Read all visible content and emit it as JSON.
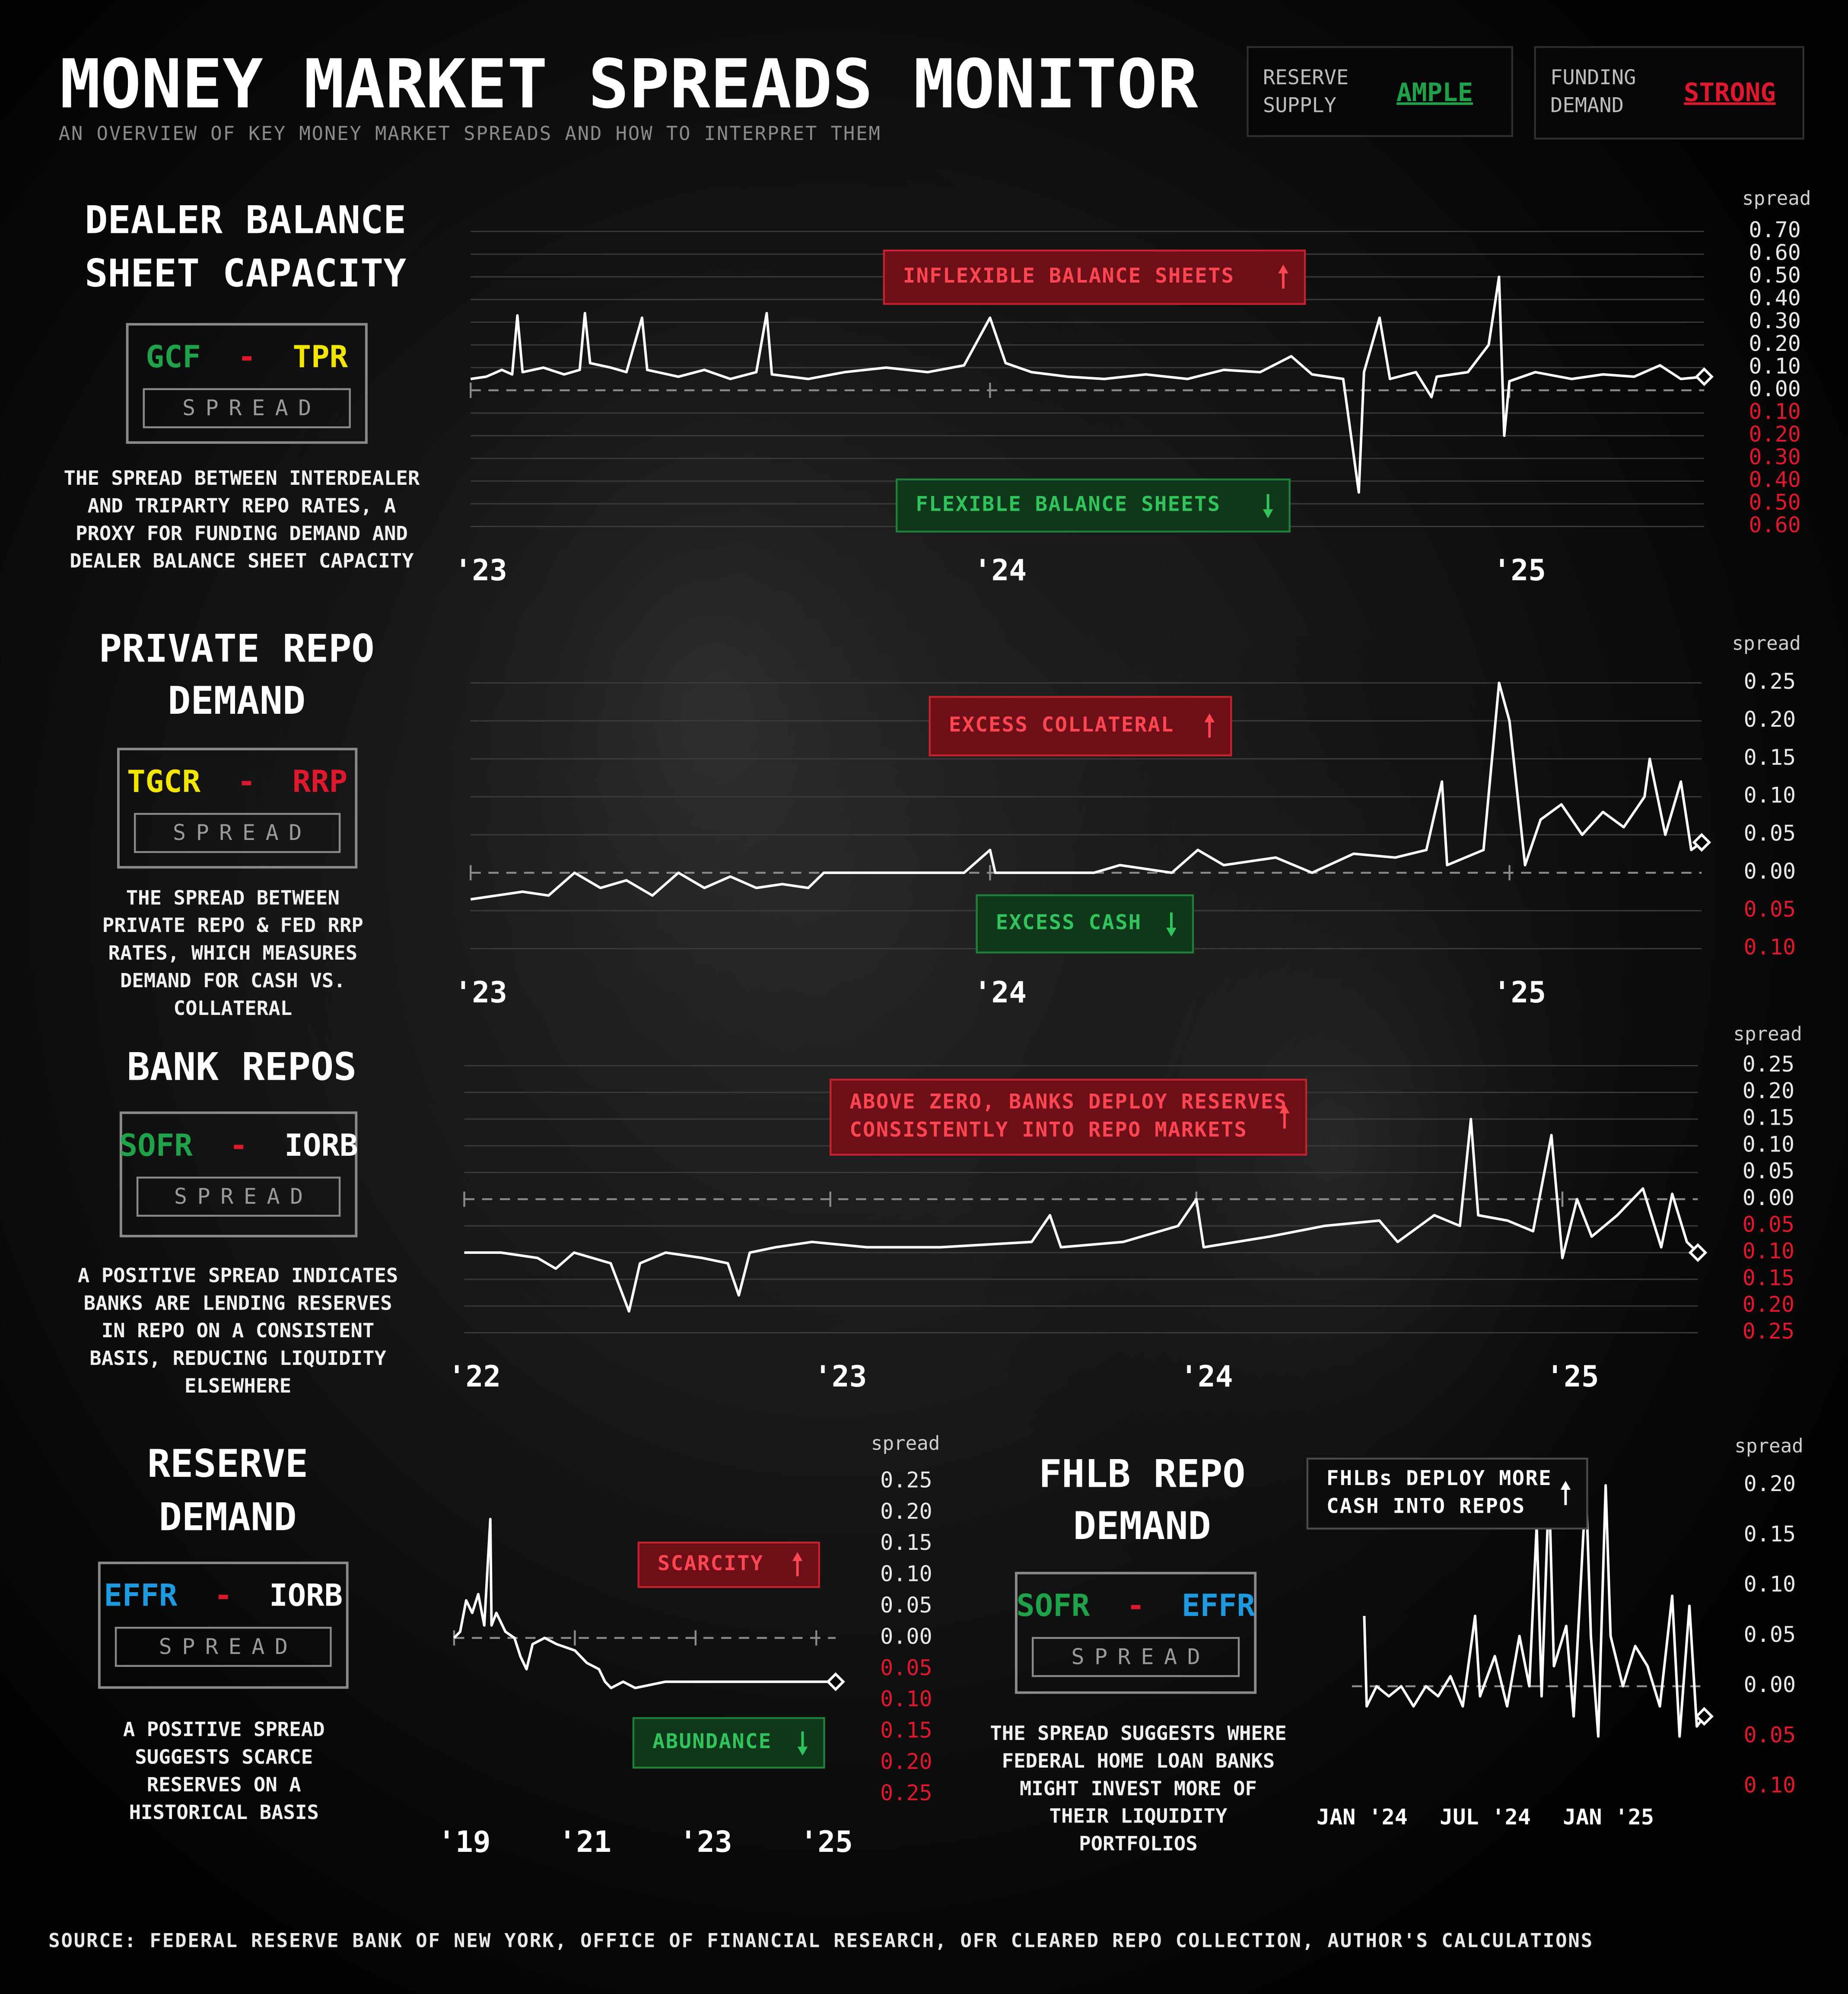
{
  "header": {
    "title": "MONEY MARKET SPREADS MONITOR",
    "subtitle": "AN OVERVIEW OF KEY MONEY MARKET SPREADS AND HOW TO INTERPRET THEM"
  },
  "indicators": [
    {
      "label": [
        "RESERVE",
        "SUPPLY"
      ],
      "value": "AMPLE",
      "color": "#1fa34a"
    },
    {
      "label": [
        "FUNDING",
        "DEMAND"
      ],
      "value": "STRONG",
      "color": "#e0182d"
    }
  ],
  "chart_data": [
    {
      "type": "line",
      "title": [
        "DEALER BALANCE",
        "SHEET CAPACITY"
      ],
      "legs": [
        {
          "text": "GCF",
          "color": "#1fa34a"
        },
        {
          "text": "-",
          "color": "#e0182d"
        },
        {
          "text": "TPR",
          "color": "#f2e600"
        }
      ],
      "spread_word": "SPREAD",
      "description": [
        "THE SPREAD BETWEEN INTERDEALER",
        "AND TRIPARTY REPO RATES, A",
        "PROXY FOR FUNDING DEMAND AND",
        "DEALER BALANCE SHEET CAPACITY"
      ],
      "y_label": "spread",
      "grid": true,
      "negative_tick_color": "#e0182d",
      "ylim": [
        -0.6,
        0.7
      ],
      "yticks": [
        {
          "value": 0.7,
          "label": "0.70"
        },
        {
          "value": 0.6,
          "label": "0.60"
        },
        {
          "value": 0.5,
          "label": "0.50"
        },
        {
          "value": 0.4,
          "label": "0.40"
        },
        {
          "value": 0.3,
          "label": "0.30"
        },
        {
          "value": 0.2,
          "label": "0.20"
        },
        {
          "value": 0.1,
          "label": "0.10"
        },
        {
          "value": 0,
          "label": "0.00"
        },
        {
          "value": -0.1,
          "label": "0.10"
        },
        {
          "value": -0.2,
          "label": "0.20"
        },
        {
          "value": -0.3,
          "label": "0.30"
        },
        {
          "value": -0.4,
          "label": "0.40"
        },
        {
          "value": -0.5,
          "label": "0.50"
        },
        {
          "value": -0.6,
          "label": "0.60"
        }
      ],
      "xlim": [
        2023,
        2025.375
      ],
      "xticks": [
        {
          "value": 2023,
          "label": "'23"
        },
        {
          "value": 2024,
          "label": "'24"
        },
        {
          "value": 2025,
          "label": "'25"
        }
      ],
      "series": [
        {
          "color": "#ffffff",
          "x": [
            2023.0,
            2023.03,
            2023.06,
            2023.08,
            2023.09,
            2023.1,
            2023.14,
            2023.18,
            2023.21,
            2023.22,
            2023.23,
            2023.27,
            2023.3,
            2023.33,
            2023.34,
            2023.4,
            2023.45,
            2023.5,
            2023.55,
            2023.57,
            2023.58,
            2023.65,
            2023.72,
            2023.8,
            2023.88,
            2023.95,
            2024.0,
            2024.03,
            2024.08,
            2024.15,
            2024.22,
            2024.3,
            2024.38,
            2024.45,
            2024.52,
            2024.58,
            2024.62,
            2024.68,
            2024.71,
            2024.72,
            2024.75,
            2024.77,
            2024.82,
            2024.85,
            2024.86,
            2024.92,
            2024.96,
            2024.98,
            2024.99,
            2025.0,
            2025.05,
            2025.12,
            2025.18,
            2025.24,
            2025.29,
            2025.33,
            2025.375
          ],
          "values": [
            0.05,
            0.06,
            0.09,
            0.07,
            0.33,
            0.08,
            0.1,
            0.07,
            0.09,
            0.34,
            0.12,
            0.1,
            0.08,
            0.32,
            0.09,
            0.06,
            0.09,
            0.05,
            0.08,
            0.34,
            0.07,
            0.05,
            0.08,
            0.1,
            0.08,
            0.11,
            0.32,
            0.12,
            0.08,
            0.06,
            0.05,
            0.07,
            0.05,
            0.09,
            0.08,
            0.15,
            0.07,
            0.05,
            -0.45,
            0.08,
            0.32,
            0.05,
            0.08,
            -0.03,
            0.06,
            0.08,
            0.2,
            0.5,
            -0.2,
            0.04,
            0.08,
            0.05,
            0.07,
            0.06,
            0.11,
            0.05,
            0.06
          ]
        }
      ],
      "annotations": [
        {
          "lines": [
            "INFLEXIBLE BALANCE SHEETS"
          ],
          "style": "red",
          "arrow": "up"
        },
        {
          "lines": [
            "FLEXIBLE BALANCE SHEETS"
          ],
          "style": "green",
          "arrow": "down"
        }
      ]
    },
    {
      "type": "line",
      "title": [
        "PRIVATE REPO",
        "DEMAND"
      ],
      "legs": [
        {
          "text": "TGCR",
          "color": "#f2e600"
        },
        {
          "text": "-",
          "color": "#e0182d"
        },
        {
          "text": "RRP",
          "color": "#e0182d"
        }
      ],
      "spread_word": "SPREAD",
      "description": [
        "THE SPREAD BETWEEN",
        "PRIVATE REPO & FED RRP",
        "RATES, WHICH MEASURES",
        "DEMAND FOR CASH VS.",
        "COLLATERAL"
      ],
      "y_label": "spread",
      "grid": true,
      "negative_tick_color": "#e0182d",
      "ylim": [
        -0.1,
        0.25
      ],
      "yticks": [
        {
          "value": 0.25,
          "label": "0.25"
        },
        {
          "value": 0.2,
          "label": "0.20"
        },
        {
          "value": 0.15,
          "label": "0.15"
        },
        {
          "value": 0.1,
          "label": "0.10"
        },
        {
          "value": 0.05,
          "label": "0.05"
        },
        {
          "value": 0,
          "label": "0.00"
        },
        {
          "value": -0.05,
          "label": "0.05"
        },
        {
          "value": -0.1,
          "label": "0.10"
        }
      ],
      "xlim": [
        2023,
        2025.37
      ],
      "xticks": [
        {
          "value": 2023,
          "label": "'23"
        },
        {
          "value": 2024,
          "label": "'24"
        },
        {
          "value": 2025,
          "label": "'25"
        }
      ],
      "series": [
        {
          "color": "#ffffff",
          "x": [
            2023.0,
            2023.05,
            2023.1,
            2023.15,
            2023.2,
            2023.25,
            2023.3,
            2023.35,
            2023.4,
            2023.45,
            2023.5,
            2023.55,
            2023.6,
            2023.65,
            2023.68,
            2023.8,
            2023.95,
            2024.0,
            2024.01,
            2024.2,
            2024.25,
            2024.35,
            2024.4,
            2024.45,
            2024.55,
            2024.62,
            2024.7,
            2024.78,
            2024.84,
            2024.87,
            2024.88,
            2024.95,
            2024.98,
            2025.0,
            2025.03,
            2025.06,
            2025.1,
            2025.14,
            2025.18,
            2025.22,
            2025.26,
            2025.27,
            2025.3,
            2025.33,
            2025.35,
            2025.37
          ],
          "values": [
            -0.035,
            -0.03,
            -0.025,
            -0.03,
            0.0,
            -0.02,
            -0.01,
            -0.03,
            0.0,
            -0.02,
            -0.005,
            -0.02,
            -0.015,
            -0.02,
            0.0,
            0.0,
            0.0,
            0.03,
            0.0,
            0.0,
            0.01,
            0.0,
            0.03,
            0.01,
            0.02,
            0.0,
            0.025,
            0.02,
            0.03,
            0.12,
            0.01,
            0.03,
            0.25,
            0.2,
            0.01,
            0.07,
            0.09,
            0.05,
            0.08,
            0.06,
            0.1,
            0.15,
            0.05,
            0.12,
            0.03,
            0.04
          ]
        }
      ],
      "annotations": [
        {
          "lines": [
            "EXCESS COLLATERAL"
          ],
          "style": "red",
          "arrow": "up"
        },
        {
          "lines": [
            "EXCESS CASH"
          ],
          "style": "green",
          "arrow": "down"
        }
      ]
    },
    {
      "type": "line",
      "title": [
        "BANK REPOS"
      ],
      "legs": [
        {
          "text": "SOFR",
          "color": "#1fa34a"
        },
        {
          "text": "-",
          "color": "#e0182d"
        },
        {
          "text": "IORB",
          "color": "#ffffff"
        }
      ],
      "spread_word": "SPREAD",
      "description": [
        "A POSITIVE SPREAD INDICATES",
        "BANKS ARE LENDING RESERVES",
        "IN REPO ON A CONSISTENT",
        "BASIS, REDUCING LIQUIDITY",
        "ELSEWHERE"
      ],
      "y_label": "spread",
      "grid": true,
      "negative_tick_color": "#e0182d",
      "ylim": [
        -0.25,
        0.25
      ],
      "yticks": [
        {
          "value": 0.25,
          "label": "0.25"
        },
        {
          "value": 0.2,
          "label": "0.20"
        },
        {
          "value": 0.15,
          "label": "0.15"
        },
        {
          "value": 0.1,
          "label": "0.10"
        },
        {
          "value": 0.05,
          "label": "0.05"
        },
        {
          "value": 0,
          "label": "0.00"
        },
        {
          "value": -0.05,
          "label": "0.05"
        },
        {
          "value": -0.1,
          "label": "0.10"
        },
        {
          "value": -0.15,
          "label": "0.15"
        },
        {
          "value": -0.2,
          "label": "0.20"
        },
        {
          "value": -0.25,
          "label": "0.25"
        }
      ],
      "xlim": [
        2022,
        2025.37
      ],
      "xticks": [
        {
          "value": 2022,
          "label": "'22"
        },
        {
          "value": 2023,
          "label": "'23"
        },
        {
          "value": 2024,
          "label": "'24"
        },
        {
          "value": 2025,
          "label": "'25"
        }
      ],
      "series": [
        {
          "color": "#ffffff",
          "x": [
            2022.0,
            2022.1,
            2022.2,
            2022.25,
            2022.3,
            2022.4,
            2022.45,
            2022.48,
            2022.55,
            2022.65,
            2022.72,
            2022.75,
            2022.78,
            2022.85,
            2022.95,
            2023.1,
            2023.3,
            2023.55,
            2023.6,
            2023.63,
            2023.8,
            2023.95,
            2024.0,
            2024.02,
            2024.2,
            2024.35,
            2024.5,
            2024.55,
            2024.65,
            2024.72,
            2024.75,
            2024.77,
            2024.85,
            2024.92,
            2024.97,
            2025.0,
            2025.04,
            2025.08,
            2025.15,
            2025.22,
            2025.27,
            2025.3,
            2025.34,
            2025.37
          ],
          "values": [
            -0.1,
            -0.1,
            -0.11,
            -0.13,
            -0.1,
            -0.12,
            -0.21,
            -0.12,
            -0.1,
            -0.11,
            -0.12,
            -0.18,
            -0.1,
            -0.09,
            -0.08,
            -0.09,
            -0.09,
            -0.08,
            -0.03,
            -0.09,
            -0.08,
            -0.05,
            0.0,
            -0.09,
            -0.07,
            -0.05,
            -0.04,
            -0.08,
            -0.03,
            -0.05,
            0.15,
            -0.03,
            -0.04,
            -0.06,
            0.12,
            -0.11,
            0.0,
            -0.07,
            -0.03,
            0.02,
            -0.09,
            0.01,
            -0.08,
            -0.1
          ]
        }
      ],
      "annotations": [
        {
          "lines": [
            "ABOVE ZERO, BANKS DEPLOY RESERVES",
            "CONSISTENTLY INTO REPO MARKETS"
          ],
          "style": "red",
          "arrow": "up"
        }
      ]
    },
    {
      "type": "line",
      "title": [
        "RESERVE",
        "DEMAND"
      ],
      "legs": [
        {
          "text": "EFFR",
          "color": "#1e9be0"
        },
        {
          "text": "-",
          "color": "#e0182d"
        },
        {
          "text": "IORB",
          "color": "#ffffff"
        }
      ],
      "spread_word": "SPREAD",
      "description": [
        "A POSITIVE SPREAD",
        "SUGGESTS SCARCE",
        "RESERVES ON A",
        "HISTORICAL BASIS"
      ],
      "y_label": "spread",
      "grid": false,
      "negative_tick_color": "#e0182d",
      "ylim": [
        -0.25,
        0.25
      ],
      "yticks": [
        {
          "value": 0.25,
          "label": "0.25"
        },
        {
          "value": 0.2,
          "label": "0.20"
        },
        {
          "value": 0.15,
          "label": "0.15"
        },
        {
          "value": 0.1,
          "label": "0.10"
        },
        {
          "value": 0.05,
          "label": "0.05"
        },
        {
          "value": 0,
          "label": "0.00"
        },
        {
          "value": -0.05,
          "label": "0.05"
        },
        {
          "value": -0.1,
          "label": "0.10"
        },
        {
          "value": -0.15,
          "label": "0.15"
        },
        {
          "value": -0.2,
          "label": "0.20"
        },
        {
          "value": -0.25,
          "label": "0.25"
        }
      ],
      "xlim": [
        2019,
        2025.32
      ],
      "xticks": [
        {
          "value": 2019,
          "label": "'19"
        },
        {
          "value": 2021,
          "label": "'21"
        },
        {
          "value": 2023,
          "label": "'23"
        },
        {
          "value": 2025,
          "label": "'25"
        }
      ],
      "series": [
        {
          "color": "#ffffff",
          "x": [
            2019.0,
            2019.1,
            2019.2,
            2019.3,
            2019.4,
            2019.5,
            2019.6,
            2019.62,
            2019.7,
            2019.85,
            2020.0,
            2020.1,
            2020.2,
            2020.3,
            2020.5,
            2020.7,
            2021.0,
            2021.2,
            2021.4,
            2021.5,
            2021.6,
            2021.8,
            2022.0,
            2022.5,
            2023.0,
            2023.5,
            2024.0,
            2024.5,
            2025.0,
            2025.32
          ],
          "values": [
            0.0,
            0.01,
            0.06,
            0.04,
            0.07,
            0.02,
            0.19,
            0.02,
            0.04,
            0.01,
            0.0,
            -0.03,
            -0.05,
            -0.01,
            0.0,
            -0.01,
            -0.02,
            -0.04,
            -0.05,
            -0.07,
            -0.08,
            -0.07,
            -0.08,
            -0.07,
            -0.07,
            -0.07,
            -0.07,
            -0.07,
            -0.07,
            -0.07
          ]
        }
      ],
      "annotations": [
        {
          "lines": [
            "SCARCITY"
          ],
          "style": "red",
          "arrow": "up"
        },
        {
          "lines": [
            "ABUNDANCE"
          ],
          "style": "green",
          "arrow": "down"
        }
      ]
    },
    {
      "type": "line",
      "title": [
        "FHLB REPO",
        "DEMAND"
      ],
      "legs": [
        {
          "text": "SOFR",
          "color": "#1fa34a"
        },
        {
          "text": "-",
          "color": "#e0182d"
        },
        {
          "text": "EFFR",
          "color": "#1e9be0"
        }
      ],
      "spread_word": "SPREAD",
      "description": [
        "THE SPREAD SUGGESTS WHERE",
        "FEDERAL HOME LOAN BANKS",
        "MIGHT INVEST MORE OF",
        "THEIR LIQUIDITY",
        "PORTFOLIOS"
      ],
      "y_label": "spread",
      "grid": false,
      "negative_tick_color": "#e0182d",
      "ylim": [
        -0.1,
        0.2
      ],
      "yticks": [
        {
          "value": 0.2,
          "label": "0.20"
        },
        {
          "value": 0.15,
          "label": "0.15"
        },
        {
          "value": 0.1,
          "label": "0.10"
        },
        {
          "value": 0.05,
          "label": "0.05"
        },
        {
          "value": 0,
          "label": "0.00"
        },
        {
          "value": -0.05,
          "label": "0.05"
        },
        {
          "value": -0.1,
          "label": "0.10"
        }
      ],
      "xlim": [
        2024,
        2025.43
      ],
      "xticks": [
        {
          "value": 2024,
          "label": "JAN '24"
        },
        {
          "value": 2024.5,
          "label": "JUL '24"
        },
        {
          "value": 2025,
          "label": "JAN '25"
        }
      ],
      "series": [
        {
          "color": "#ffffff",
          "x": [
            2024.05,
            2024.06,
            2024.1,
            2024.15,
            2024.2,
            2024.25,
            2024.3,
            2024.35,
            2024.4,
            2024.45,
            2024.5,
            2024.52,
            2024.58,
            2024.63,
            2024.68,
            2024.72,
            2024.75,
            2024.77,
            2024.8,
            2024.82,
            2024.87,
            2024.9,
            2024.95,
            2024.97,
            2025.0,
            2025.03,
            2025.05,
            2025.1,
            2025.15,
            2025.2,
            2025.25,
            2025.3,
            2025.33,
            2025.37,
            2025.4,
            2025.43
          ],
          "values": [
            0.07,
            -0.02,
            0.0,
            -0.01,
            0.0,
            -0.02,
            0.0,
            -0.01,
            0.01,
            -0.02,
            0.07,
            -0.01,
            0.03,
            -0.02,
            0.05,
            0.0,
            0.16,
            -0.01,
            0.2,
            0.02,
            0.06,
            -0.03,
            0.2,
            0.05,
            -0.05,
            0.2,
            0.05,
            0.0,
            0.04,
            0.02,
            -0.02,
            0.09,
            -0.05,
            0.08,
            -0.04,
            -0.03
          ]
        }
      ],
      "annotations": [
        {
          "lines": [
            "FHLBs DEPLOY MORE",
            "CASH INTO REPOS"
          ],
          "style": "dark",
          "arrow": "up"
        }
      ]
    }
  ],
  "footer": "SOURCE: FEDERAL RESERVE BANK OF NEW YORK, OFFICE OF FINANCIAL RESEARCH, OFR CLEARED REPO COLLECTION, AUTHOR'S CALCULATIONS"
}
